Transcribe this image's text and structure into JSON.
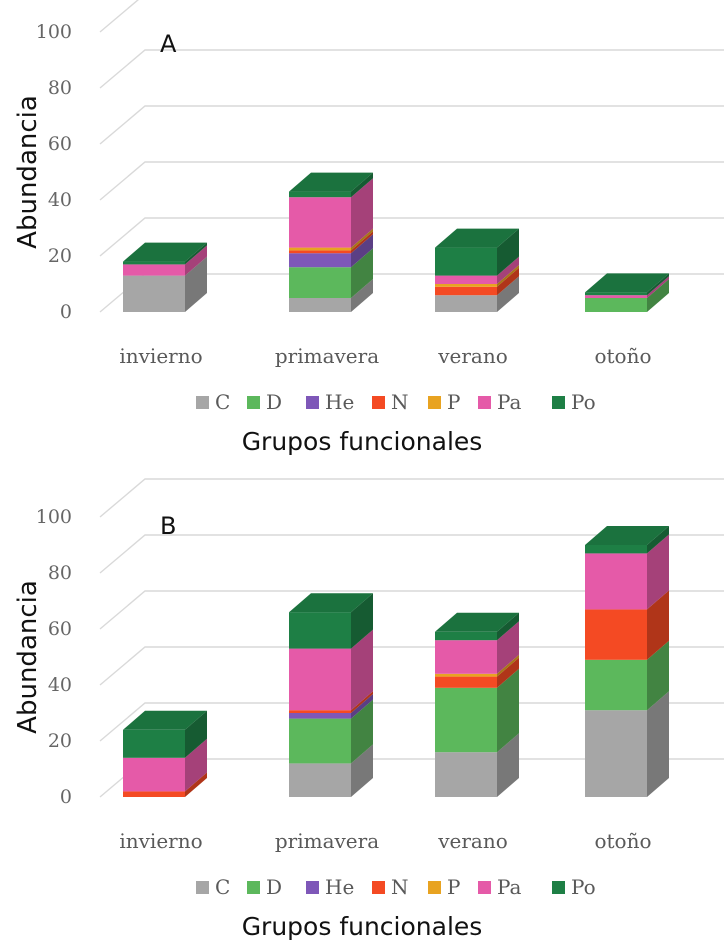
{
  "chart_data": [
    {
      "type": "bar",
      "stacked": true,
      "three_d": true,
      "panel_label": "A",
      "xlabel": "Grupos funcionales",
      "ylabel": "Abundancia",
      "ylim": [
        0,
        100
      ],
      "yticks": [
        0,
        20,
        40,
        60,
        80,
        100
      ],
      "categories": [
        "invierno",
        "primavera",
        "verano",
        "otoño"
      ],
      "series": [
        {
          "name": "C",
          "color": "#a6a6a6",
          "values": [
            13,
            5,
            6,
            0
          ]
        },
        {
          "name": "D",
          "color": "#5cb85c",
          "values": [
            0,
            11,
            0,
            5
          ]
        },
        {
          "name": "He",
          "color": "#7e57b8",
          "values": [
            0,
            5,
            0,
            0
          ]
        },
        {
          "name": "N",
          "color": "#f44a23",
          "values": [
            0,
            1,
            3,
            0
          ]
        },
        {
          "name": "P",
          "color": "#e8a321",
          "values": [
            0,
            1,
            1,
            0
          ]
        },
        {
          "name": "Pa",
          "color": "#e55aa8",
          "values": [
            4,
            18,
            3,
            1
          ]
        },
        {
          "name": "Po",
          "color": "#1e7f45",
          "values": [
            1,
            2,
            10,
            1
          ]
        }
      ],
      "legend_position": "bottom",
      "grid": true
    },
    {
      "type": "bar",
      "stacked": true,
      "three_d": true,
      "panel_label": "B",
      "xlabel": "Grupos funcionales",
      "ylabel": "Abundancia",
      "ylim": [
        0,
        100
      ],
      "yticks": [
        0,
        20,
        40,
        60,
        80,
        100
      ],
      "categories": [
        "invierno",
        "primavera",
        "verano",
        "otoño"
      ],
      "series": [
        {
          "name": "C",
          "color": "#a6a6a6",
          "values": [
            0,
            12,
            16,
            31
          ]
        },
        {
          "name": "D",
          "color": "#5cb85c",
          "values": [
            0,
            16,
            23,
            18
          ]
        },
        {
          "name": "He",
          "color": "#7e57b8",
          "values": [
            0,
            2,
            0,
            0
          ]
        },
        {
          "name": "N",
          "color": "#f44a23",
          "values": [
            2,
            1,
            4,
            18
          ]
        },
        {
          "name": "P",
          "color": "#e8a321",
          "values": [
            0,
            0,
            1,
            0
          ]
        },
        {
          "name": "Pa",
          "color": "#e55aa8",
          "values": [
            12,
            22,
            12,
            20
          ]
        },
        {
          "name": "Po",
          "color": "#1e7f45",
          "values": [
            10,
            13,
            3,
            3
          ]
        }
      ],
      "legend_position": "bottom",
      "grid": true
    }
  ]
}
